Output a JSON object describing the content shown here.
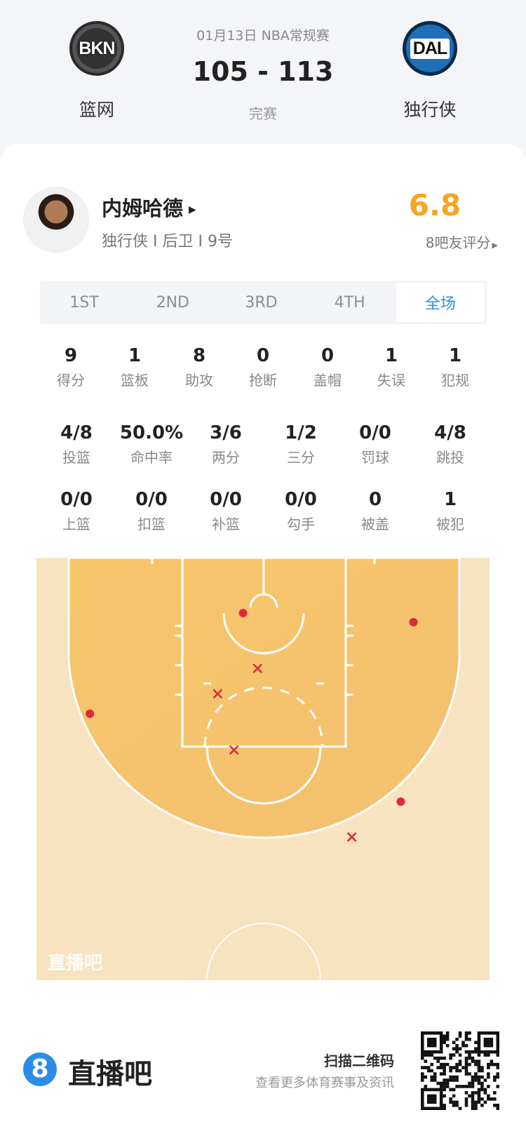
{
  "match": {
    "date_league": "01月13日 NBA常规赛",
    "score": "105 - 113",
    "status": "完赛",
    "home": {
      "abbr": "BKN",
      "name": "篮网"
    },
    "away": {
      "abbr": "DAL",
      "name": "独行侠"
    }
  },
  "player": {
    "name": "内姆哈德",
    "info": "独行侠 I 后卫 I 9号",
    "rating": "6.8",
    "rating_label": "8吧友评分",
    "rating_color": "#f5a623"
  },
  "tabs": [
    {
      "label": "1ST"
    },
    {
      "label": "2ND"
    },
    {
      "label": "3RD"
    },
    {
      "label": "4TH"
    },
    {
      "label": "全场",
      "selected": true
    }
  ],
  "stats_row1": [
    {
      "v": "9",
      "l": "得分"
    },
    {
      "v": "1",
      "l": "篮板"
    },
    {
      "v": "8",
      "l": "助攻"
    },
    {
      "v": "0",
      "l": "抢断"
    },
    {
      "v": "0",
      "l": "盖帽"
    },
    {
      "v": "1",
      "l": "失误"
    },
    {
      "v": "1",
      "l": "犯规"
    }
  ],
  "stats_row2": [
    {
      "v": "4/8",
      "l": "投篮"
    },
    {
      "v": "50.0%",
      "l": "命中率"
    },
    {
      "v": "3/6",
      "l": "两分"
    },
    {
      "v": "1/2",
      "l": "三分"
    },
    {
      "v": "0/0",
      "l": "罚球"
    },
    {
      "v": "4/8",
      "l": "跳投"
    }
  ],
  "stats_row3": [
    {
      "v": "0/0",
      "l": "上篮"
    },
    {
      "v": "0/0",
      "l": "扣篮"
    },
    {
      "v": "0/0",
      "l": "补篮"
    },
    {
      "v": "0/0",
      "l": "勾手"
    },
    {
      "v": "0",
      "l": "被盖"
    },
    {
      "v": "1",
      "l": "被犯"
    }
  ],
  "shot_chart": {
    "watermark": "直播吧",
    "units": "feet from hoop centerline / baseline",
    "made": [
      [
        -2.2,
        6.1
      ],
      [
        16.6,
        7.1
      ],
      [
        -19.1,
        17.2
      ],
      [
        15.2,
        26.9
      ]
    ],
    "missed": [
      [
        -0.6,
        12.2
      ],
      [
        -5.0,
        15.0
      ],
      [
        -3.2,
        21.2
      ],
      [
        9.8,
        30.8
      ]
    ],
    "made_marker": "dot",
    "missed_marker": "cross",
    "marker_color": "#e0283a"
  },
  "footer": {
    "logo_digit": "8",
    "brand": "直播吧",
    "scan": "扫描二维码",
    "sub": "查看更多体育赛事及资讯",
    "accent": "#2e8ce6"
  }
}
